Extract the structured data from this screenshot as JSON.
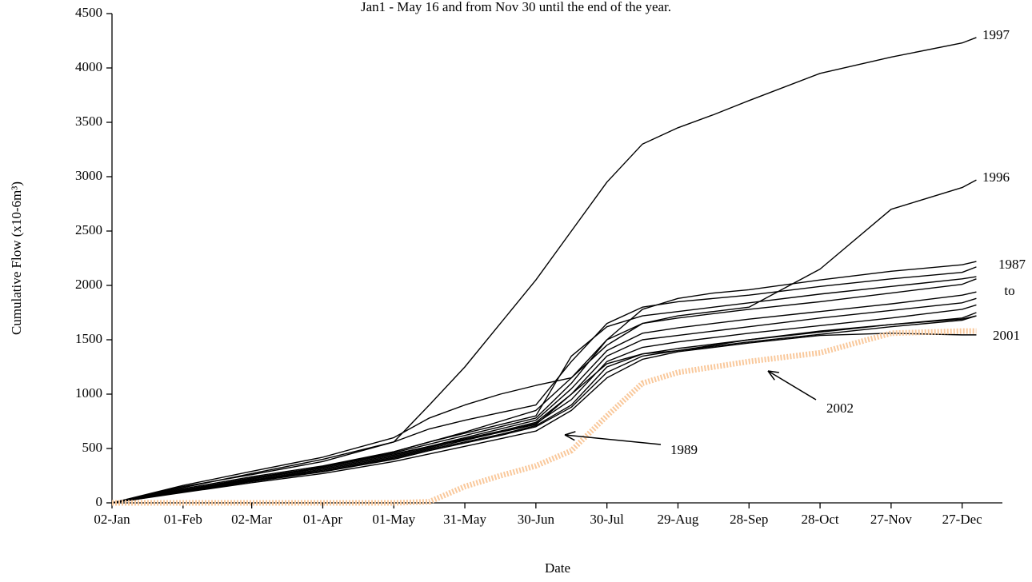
{
  "chart_data": {
    "type": "line",
    "title": "Jan1 - May 16 and from Nov 30 until the end of the year.",
    "xlabel": "Date",
    "ylabel": "Cumulative Flow (x10-6m³)",
    "x": [
      2,
      32,
      61,
      91,
      121,
      136,
      151,
      166,
      181,
      196,
      211,
      226,
      241,
      256,
      271,
      301,
      331,
      361,
      367
    ],
    "xlim": [
      2,
      378
    ],
    "xticks": [
      {
        "value": 2,
        "label": "02-Jan"
      },
      {
        "value": 32,
        "label": "01-Feb"
      },
      {
        "value": 61,
        "label": "02-Mar"
      },
      {
        "value": 91,
        "label": "01-Apr"
      },
      {
        "value": 121,
        "label": "01-May"
      },
      {
        "value": 151,
        "label": "31-May"
      },
      {
        "value": 181,
        "label": "30-Jun"
      },
      {
        "value": 211,
        "label": "30-Jul"
      },
      {
        "value": 241,
        "label": "29-Aug"
      },
      {
        "value": 271,
        "label": "28-Sep"
      },
      {
        "value": 301,
        "label": "28-Oct"
      },
      {
        "value": 331,
        "label": "27-Nov"
      },
      {
        "value": 361,
        "label": "27-Dec"
      }
    ],
    "ylim": [
      0,
      4500
    ],
    "yticks": [
      0,
      500,
      1000,
      1500,
      2000,
      2500,
      3000,
      3500,
      4000,
      4500
    ],
    "series": [
      {
        "color": "#000000",
        "values": [
          0,
          150,
          260,
          380,
          560,
          900,
          1250,
          1650,
          2050,
          2500,
          2950,
          3300,
          3450,
          3570,
          3700,
          3950,
          4100,
          4230,
          4280
        ]
      },
      {
        "color": "#000000",
        "values": [
          0,
          120,
          220,
          330,
          470,
          560,
          650,
          750,
          850,
          1150,
          1450,
          1650,
          1720,
          1760,
          1800,
          2150,
          2700,
          2900,
          2970
        ]
      },
      {
        "color": "#000000",
        "values": [
          0,
          160,
          290,
          420,
          600,
          780,
          900,
          1000,
          1080,
          1150,
          1500,
          1780,
          1880,
          1930,
          1960,
          2050,
          2130,
          2190,
          2220
        ]
      },
      {
        "color": "#000000",
        "values": [
          0,
          140,
          270,
          400,
          560,
          680,
          760,
          830,
          900,
          1300,
          1650,
          1800,
          1850,
          1880,
          1910,
          1990,
          2060,
          2120,
          2170
        ]
      },
      {
        "color": "#000000",
        "values": [
          0,
          130,
          240,
          340,
          470,
          560,
          640,
          720,
          800,
          1350,
          1620,
          1720,
          1760,
          1800,
          1840,
          1920,
          1990,
          2060,
          2080
        ]
      },
      {
        "color": "#000000",
        "values": [
          0,
          120,
          230,
          330,
          460,
          540,
          620,
          700,
          780,
          1100,
          1500,
          1650,
          1700,
          1740,
          1780,
          1850,
          1930,
          2010,
          2060
        ]
      },
      {
        "color": "#000000",
        "values": [
          0,
          115,
          220,
          320,
          440,
          520,
          600,
          680,
          760,
          1050,
          1400,
          1560,
          1610,
          1650,
          1690,
          1760,
          1830,
          1910,
          1940
        ]
      },
      {
        "color": "#000000",
        "values": [
          0,
          110,
          210,
          310,
          430,
          510,
          590,
          660,
          740,
          1000,
          1350,
          1500,
          1540,
          1580,
          1620,
          1700,
          1770,
          1840,
          1880
        ]
      },
      {
        "color": "#000000",
        "values": [
          0,
          105,
          205,
          300,
          420,
          500,
          575,
          650,
          730,
          950,
          1300,
          1430,
          1480,
          1520,
          1560,
          1630,
          1700,
          1780,
          1820
        ]
      },
      {
        "color": "#000000",
        "values": [
          0,
          100,
          200,
          290,
          410,
          490,
          560,
          630,
          710,
          900,
          1250,
          1370,
          1420,
          1460,
          1500,
          1570,
          1640,
          1700,
          1750
        ]
      },
      {
        "color": "#000000",
        "values": [
          0,
          100,
          195,
          285,
          400,
          480,
          550,
          620,
          700,
          880,
          1200,
          1350,
          1400,
          1440,
          1480,
          1550,
          1620,
          1680,
          1720
        ]
      },
      {
        "color": "#000000",
        "values": [
          0,
          110,
          220,
          330,
          450,
          520,
          580,
          650,
          720,
          1000,
          1280,
          1370,
          1400,
          1450,
          1500,
          1580,
          1640,
          1690,
          1720
        ]
      },
      {
        "color": "#000000",
        "values": [
          0,
          95,
          185,
          270,
          380,
          450,
          520,
          590,
          660,
          850,
          1150,
          1320,
          1390,
          1430,
          1470,
          1540,
          1560,
          1545,
          1545
        ]
      },
      {
        "color": "#f9c89b",
        "values": [
          0,
          0,
          0,
          0,
          0,
          10,
          150,
          250,
          340,
          480,
          800,
          1100,
          1200,
          1250,
          1300,
          1380,
          1560,
          1580,
          1580
        ]
      }
    ],
    "annotations": [
      "1997",
      "1996",
      "1987",
      "to",
      "2001",
      "2002",
      "1989"
    ]
  }
}
